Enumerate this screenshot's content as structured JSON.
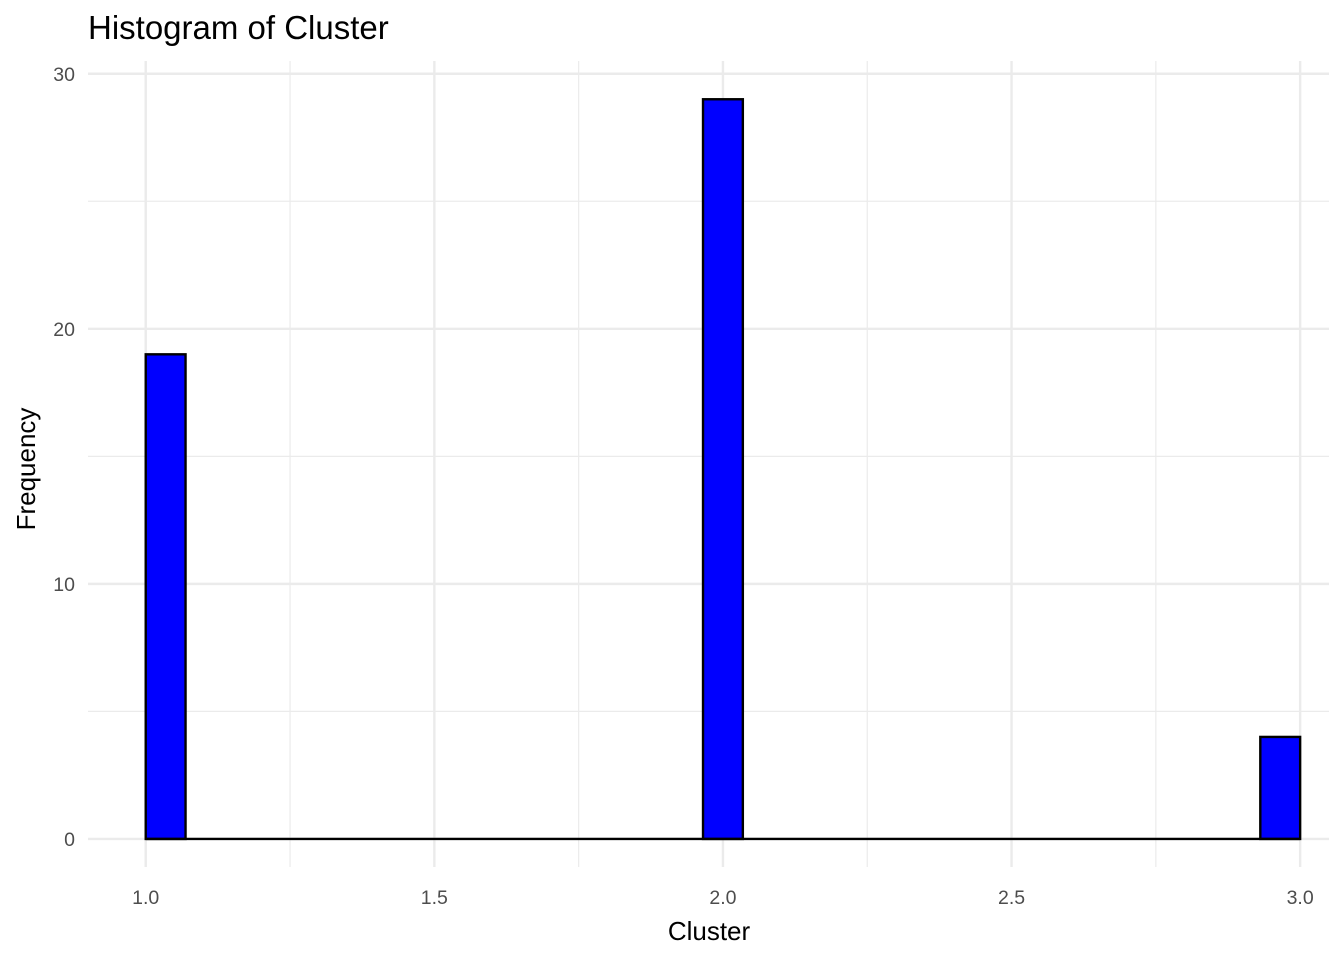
{
  "chart_data": {
    "type": "bar",
    "title": "Histogram of Cluster",
    "xlabel": "Cluster",
    "ylabel": "Frequency",
    "xlim": [
      0.9,
      3.05
    ],
    "ylim": [
      -1.1,
      30.5
    ],
    "x_ticks": [
      "1.0",
      "1.5",
      "2.0",
      "2.5",
      "3.0"
    ],
    "x_tick_values": [
      1.0,
      1.5,
      2.0,
      2.5,
      3.0
    ],
    "y_ticks": [
      "0",
      "10",
      "20",
      "30"
    ],
    "y_tick_values": [
      0,
      10,
      20,
      30
    ],
    "bin_width": 0.069,
    "bins": [
      {
        "center": 1.0345,
        "count": 19
      },
      {
        "center": 2.0,
        "count": 29
      },
      {
        "center": 2.9655,
        "count": 4
      }
    ],
    "baseline": {
      "from": 1.0,
      "to": 3.0
    },
    "fill_color": "#0000ff",
    "outline_color": "#000000",
    "grid": true,
    "legend": "none"
  }
}
